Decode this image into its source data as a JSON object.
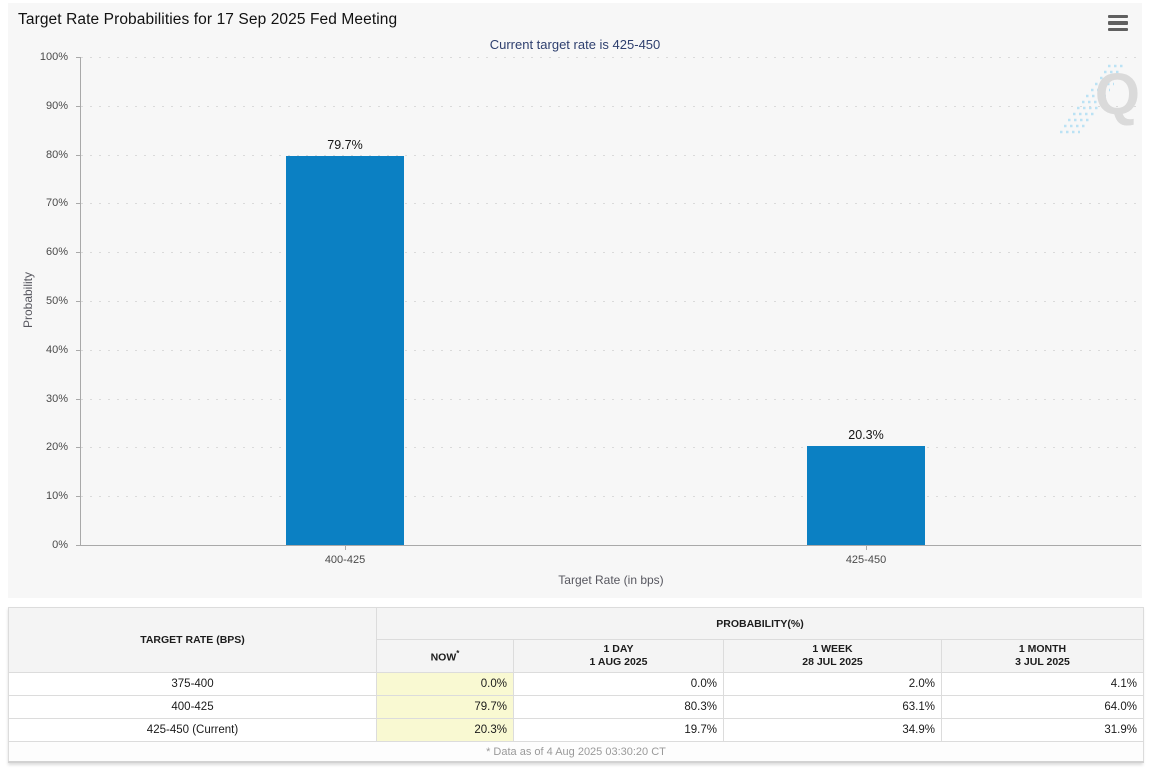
{
  "header": {
    "title": "Target Rate Probabilities for 17 Sep 2025 Fed Meeting",
    "menu_icon": "hamburger-menu-icon"
  },
  "chart_data": {
    "type": "bar",
    "title": "Target Rate Probabilities for 17 Sep 2025 Fed Meeting",
    "subtitle": "Current target rate is 425-450",
    "categories": [
      "400-425",
      "425-450"
    ],
    "values": [
      79.7,
      20.3
    ],
    "value_labels": [
      "79.7%",
      "20.3%"
    ],
    "xlabel": "Target Rate (in bps)",
    "ylabel": "Probability",
    "ylim": [
      0,
      100
    ],
    "ytick_labels": [
      "0%",
      "10%",
      "20%",
      "30%",
      "40%",
      "50%",
      "60%",
      "70%",
      "80%",
      "90%",
      "100%"
    ],
    "grid": "horizontal-dotted",
    "legend": "none",
    "bar_color": "#0b80c3"
  },
  "watermark": {
    "letter": "Q"
  },
  "table": {
    "header": {
      "target_rate": "TARGET RATE (BPS)",
      "probability": "PROBABILITY(%)",
      "now": "NOW",
      "now_superscript": "*",
      "cols": [
        {
          "label": "1 DAY",
          "date": "1 AUG 2025"
        },
        {
          "label": "1 WEEK",
          "date": "28 JUL 2025"
        },
        {
          "label": "1 MONTH",
          "date": "3 JUL 2025"
        }
      ]
    },
    "rows": [
      {
        "rate": "375-400",
        "now": "0.0%",
        "day": "0.0%",
        "week": "2.0%",
        "month": "4.1%"
      },
      {
        "rate": "400-425",
        "now": "79.7%",
        "day": "80.3%",
        "week": "63.1%",
        "month": "64.0%"
      },
      {
        "rate": "425-450 (Current)",
        "now": "20.3%",
        "day": "19.7%",
        "week": "34.9%",
        "month": "31.9%"
      }
    ],
    "footnote": "* Data as of 4 Aug 2025 03:30:20 CT"
  },
  "colors": {
    "panel_bg": "#f7f7f7",
    "bar": "#0b80c3",
    "subtitle": "#2e3f6e",
    "now_column_bg": "#f9f9d2",
    "header_bg": "#f4f4f4",
    "axis": "#a9a9a9"
  }
}
